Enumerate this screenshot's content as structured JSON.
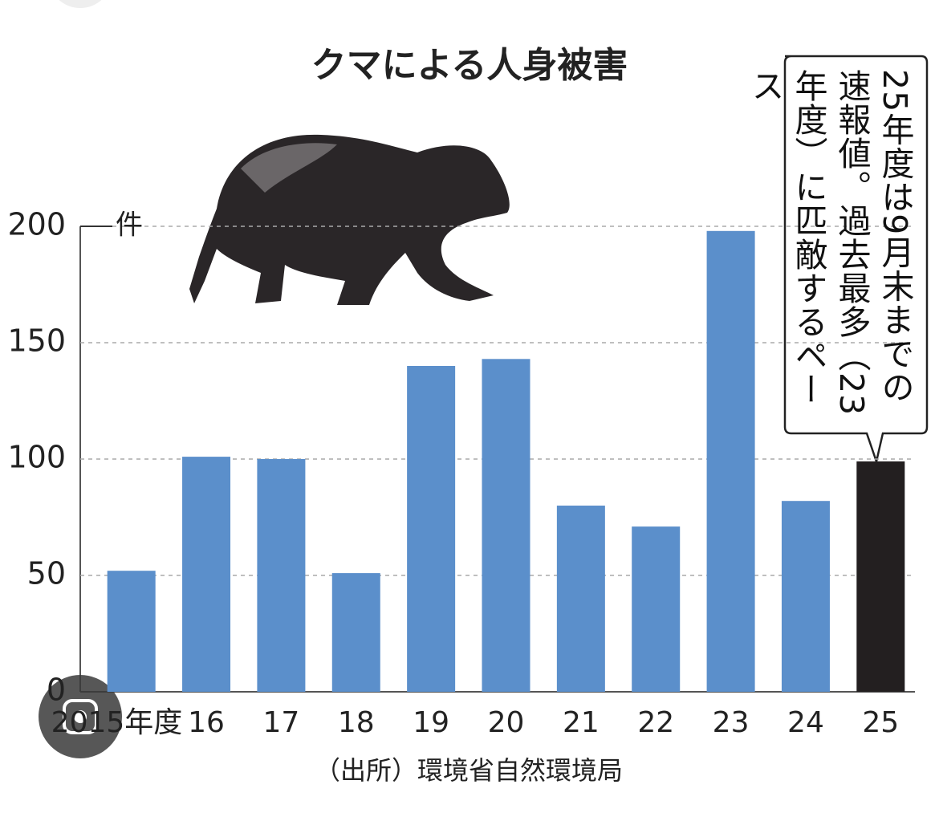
{
  "chart_data": {
    "type": "bar",
    "title": "クマによる人身被害",
    "y_unit": "件",
    "categories": [
      "2015年度",
      "16",
      "17",
      "18",
      "19",
      "20",
      "21",
      "22",
      "23",
      "24",
      "25"
    ],
    "values": [
      52,
      101,
      100,
      51,
      140,
      143,
      80,
      71,
      198,
      82,
      99
    ],
    "colors": [
      "#5b8fcb",
      "#5b8fcb",
      "#5b8fcb",
      "#5b8fcb",
      "#5b8fcb",
      "#5b8fcb",
      "#5b8fcb",
      "#5b8fcb",
      "#5b8fcb",
      "#5b8fcb",
      "#231f20"
    ],
    "ylim": [
      0,
      200
    ],
    "yticks": [
      0,
      50,
      100,
      150,
      200
    ],
    "grid": true,
    "annotation": "25年度は9月末までの速報値。過去最多（23年度）に匹敵するペース",
    "source": "（出所）環境省自然環境局"
  }
}
